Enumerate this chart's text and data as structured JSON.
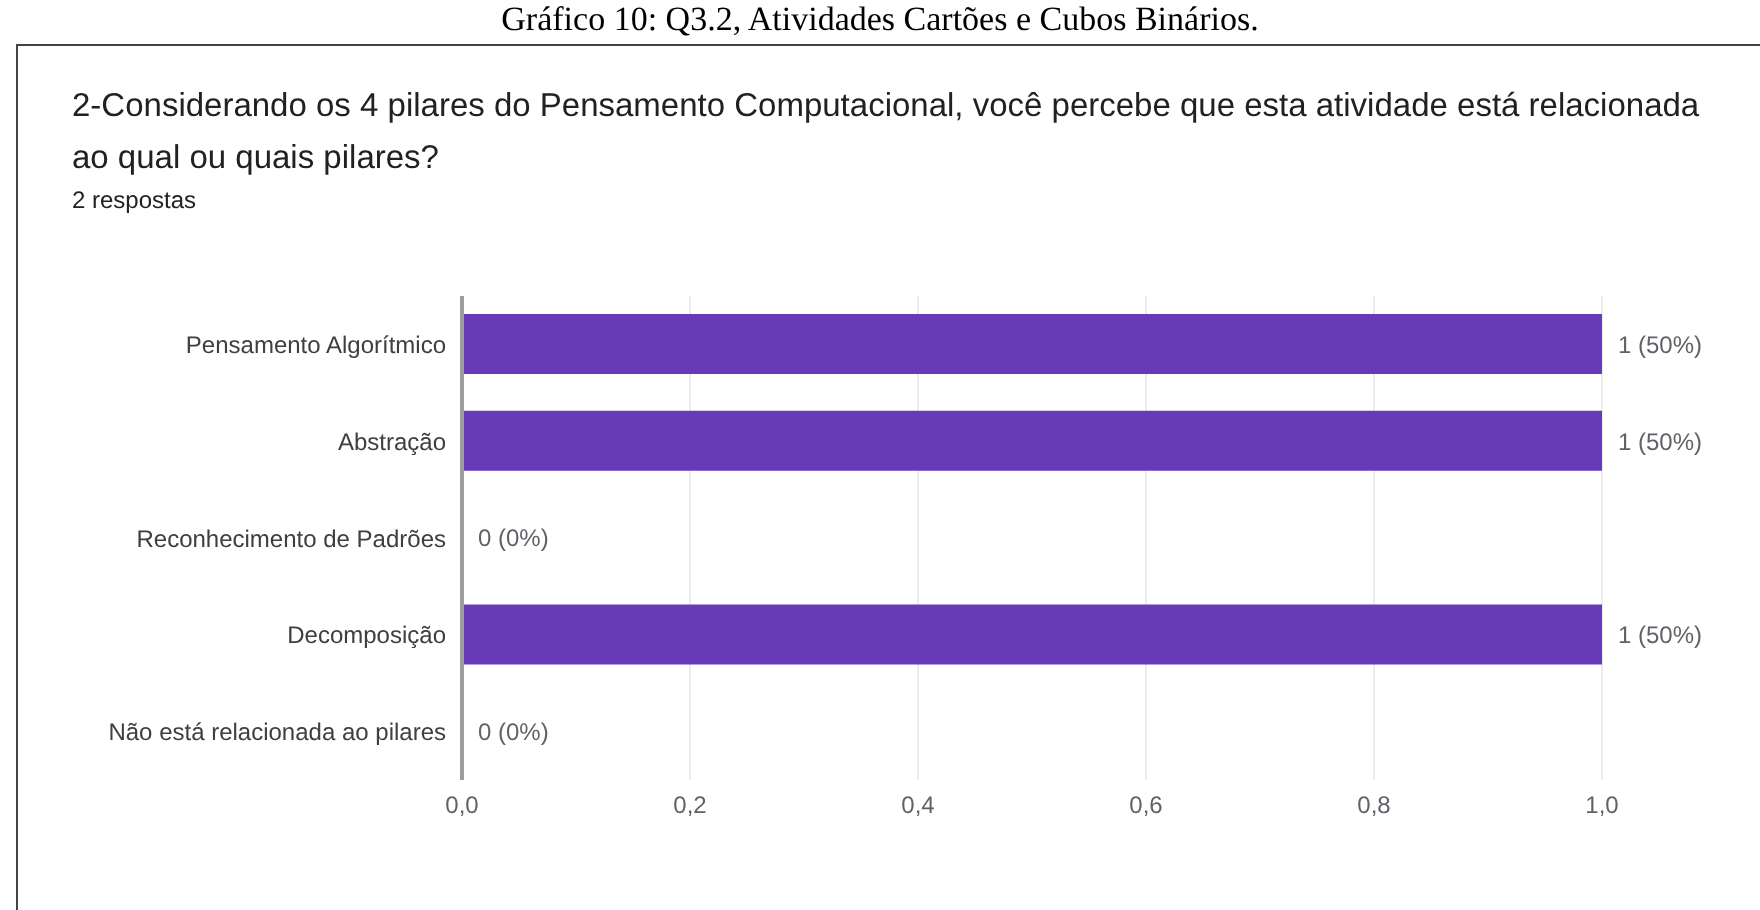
{
  "chart_data": {
    "type": "bar",
    "orientation": "horizontal",
    "title": "2-Considerando os 4 pilares do Pensamento Computacional, você percebe que esta atividade está relacionada ao qual ou quais pilares?",
    "subtitle": "2 respostas",
    "annotations": [
      "Gráfico 10: Q3.2, Atividades Cartões e Cubos Binários."
    ],
    "categories": [
      "Pensamento Algorítmico",
      "Abstração",
      "Reconhecimento de Padrões",
      "Decomposição",
      "Não está relacionada ao pilares"
    ],
    "values": [
      1,
      1,
      0,
      1,
      0
    ],
    "value_labels": [
      "1 (50%)",
      "1 (50%)",
      "0 (0%)",
      "1 (50%)",
      "0 (0%)"
    ],
    "color": "#673ab7",
    "xlim": [
      0,
      1
    ],
    "xticks": [
      {
        "value": 0,
        "label": "0,0"
      },
      {
        "value": 0.2,
        "label": "0,2"
      },
      {
        "value": 0.4,
        "label": "0,4"
      },
      {
        "value": 0.6,
        "label": "0,6"
      },
      {
        "value": 0.8,
        "label": "0,8"
      },
      {
        "value": 1,
        "label": "1,0"
      }
    ],
    "grid": "x",
    "legend": false
  }
}
